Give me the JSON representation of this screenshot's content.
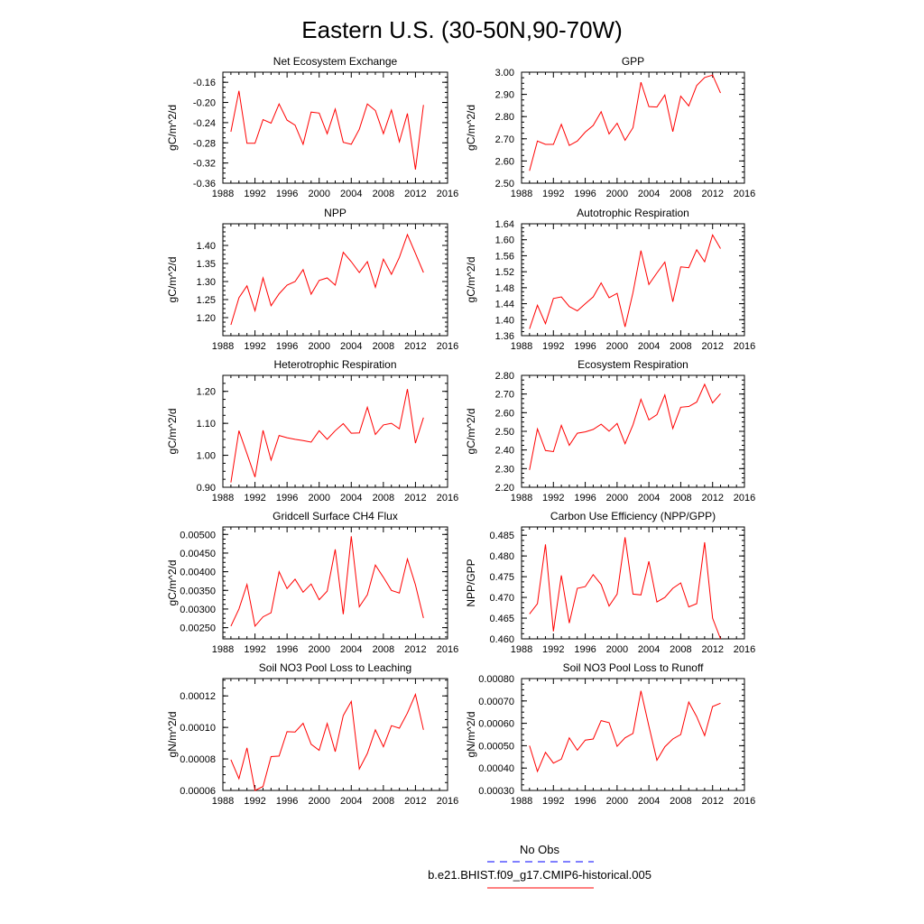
{
  "figure": {
    "title": "Eastern U.S. (30-50N,90-70W)"
  },
  "legend": [
    {
      "label": "No Obs",
      "color": "#0000ff",
      "dashed": true
    },
    {
      "label": "b.e21.BHIST.f09_g17.CMIP6-historical.005",
      "color": "#ff0000",
      "dashed": false
    }
  ],
  "chart_data": [
    {
      "type": "line",
      "title": "Net Ecosystem Exchange",
      "ylabel": "gC/m^2/d",
      "xlim": [
        1988,
        2016
      ],
      "xticks": [
        "1988",
        "1992",
        "1996",
        "2000",
        "2004",
        "2008",
        "2012",
        "2016"
      ],
      "ylim": [
        -0.36,
        -0.14
      ],
      "yticks": [
        "-0.16",
        "-0.20",
        "-0.24",
        "-0.28",
        "-0.32",
        "-0.36"
      ],
      "series": [
        {
          "color": "#ff0000",
          "x": [
            1989,
            1990,
            1991,
            1992,
            1993,
            1994,
            1995,
            1996,
            1997,
            1998,
            1999,
            2000,
            2001,
            2002,
            2003,
            2004,
            2005,
            2006,
            2007,
            2008,
            2009,
            2010,
            2011,
            2012,
            2013
          ],
          "y": [
            -0.258,
            -0.177,
            -0.281,
            -0.281,
            -0.234,
            -0.241,
            -0.203,
            -0.235,
            -0.245,
            -0.283,
            -0.219,
            -0.221,
            -0.262,
            -0.213,
            -0.279,
            -0.283,
            -0.253,
            -0.203,
            -0.216,
            -0.262,
            -0.215,
            -0.278,
            -0.222,
            -0.333,
            -0.205
          ]
        }
      ]
    },
    {
      "type": "line",
      "title": "GPP",
      "ylabel": "gC/m^2/d",
      "xlim": [
        1988,
        2016
      ],
      "xticks": [
        "1988",
        "1992",
        "1996",
        "2000",
        "2004",
        "2008",
        "2012",
        "2016"
      ],
      "ylim": [
        2.5,
        3.0
      ],
      "yticks": [
        "3.00",
        "2.90",
        "2.80",
        "2.70",
        "2.60",
        "2.50"
      ],
      "series": [
        {
          "color": "#ff0000",
          "x": [
            1989,
            1990,
            1991,
            1992,
            1993,
            1994,
            1995,
            1996,
            1997,
            1998,
            1999,
            2000,
            2001,
            2002,
            2003,
            2004,
            2005,
            2006,
            2007,
            2008,
            2009,
            2010,
            2011,
            2012,
            2013
          ],
          "y": [
            2.556,
            2.69,
            2.675,
            2.675,
            2.765,
            2.67,
            2.69,
            2.73,
            2.76,
            2.822,
            2.722,
            2.77,
            2.693,
            2.75,
            2.955,
            2.845,
            2.843,
            2.897,
            2.732,
            2.892,
            2.848,
            2.94,
            2.976,
            2.987,
            2.906
          ]
        }
      ]
    },
    {
      "type": "line",
      "title": "NPP",
      "ylabel": "gC/m^2/d",
      "xlim": [
        1988,
        2016
      ],
      "xticks": [
        "1988",
        "1992",
        "1996",
        "2000",
        "2004",
        "2008",
        "2012",
        "2016"
      ],
      "ylim": [
        1.15,
        1.46
      ],
      "yticks": [
        "1.40",
        "1.35",
        "1.30",
        "1.25",
        "1.20"
      ],
      "series": [
        {
          "color": "#ff0000",
          "x": [
            1989,
            1990,
            1991,
            1992,
            1993,
            1994,
            1995,
            1996,
            1997,
            1998,
            1999,
            2000,
            2001,
            2002,
            2003,
            2004,
            2005,
            2006,
            2007,
            2008,
            2009,
            2010,
            2011,
            2012,
            2013
          ],
          "y": [
            1.18,
            1.255,
            1.288,
            1.219,
            1.31,
            1.233,
            1.266,
            1.29,
            1.3,
            1.333,
            1.265,
            1.303,
            1.31,
            1.29,
            1.381,
            1.355,
            1.325,
            1.355,
            1.284,
            1.362,
            1.32,
            1.367,
            1.43,
            1.378,
            1.325
          ]
        }
      ]
    },
    {
      "type": "line",
      "title": "Autotrophic Respiration",
      "ylabel": "gC/m^2/d",
      "xlim": [
        1988,
        2016
      ],
      "xticks": [
        "1988",
        "1992",
        "1996",
        "2000",
        "2004",
        "2008",
        "2012",
        "2016"
      ],
      "ylim": [
        1.36,
        1.64
      ],
      "yticks": [
        "1.64",
        "1.60",
        "1.56",
        "1.52",
        "1.48",
        "1.44",
        "1.40",
        "1.36"
      ],
      "series": [
        {
          "color": "#ff0000",
          "x": [
            1989,
            1990,
            1991,
            1992,
            1993,
            1994,
            1995,
            1996,
            1997,
            1998,
            1999,
            2000,
            2001,
            2002,
            2003,
            2004,
            2005,
            2006,
            2007,
            2008,
            2009,
            2010,
            2011,
            2012,
            2013
          ],
          "y": [
            1.377,
            1.436,
            1.39,
            1.453,
            1.457,
            1.433,
            1.422,
            1.44,
            1.457,
            1.492,
            1.455,
            1.466,
            1.382,
            1.468,
            1.573,
            1.488,
            1.517,
            1.544,
            1.445,
            1.532,
            1.53,
            1.575,
            1.545,
            1.612,
            1.578
          ]
        }
      ]
    },
    {
      "type": "line",
      "title": "Heterotrophic Respiration",
      "ylabel": "gC/m^2/d",
      "xlim": [
        1988,
        2016
      ],
      "xticks": [
        "1988",
        "1992",
        "1996",
        "2000",
        "2004",
        "2008",
        "2012",
        "2016"
      ],
      "ylim": [
        0.9,
        1.25
      ],
      "yticks": [
        "1.20",
        "1.10",
        "1.00",
        "0.90"
      ],
      "series": [
        {
          "color": "#ff0000",
          "x": [
            1989,
            1990,
            1991,
            1992,
            1993,
            1994,
            1995,
            1996,
            1997,
            1998,
            1999,
            2000,
            2001,
            2002,
            2003,
            2004,
            2005,
            2006,
            2007,
            2008,
            2009,
            2010,
            2011,
            2012,
            2013
          ],
          "y": [
            0.915,
            1.077,
            1.005,
            0.932,
            1.078,
            0.985,
            1.062,
            1.055,
            1.05,
            1.046,
            1.041,
            1.077,
            1.05,
            1.077,
            1.099,
            1.069,
            1.07,
            1.15,
            1.065,
            1.095,
            1.1,
            1.083,
            1.207,
            1.038,
            1.118
          ]
        }
      ]
    },
    {
      "type": "line",
      "title": "Ecosystem Respiration",
      "ylabel": "gC/m^2/d",
      "xlim": [
        1988,
        2016
      ],
      "xticks": [
        "1988",
        "1992",
        "1996",
        "2000",
        "2004",
        "2008",
        "2012",
        "2016"
      ],
      "ylim": [
        2.2,
        2.8
      ],
      "yticks": [
        "2.80",
        "2.70",
        "2.60",
        "2.50",
        "2.40",
        "2.30",
        "2.20"
      ],
      "series": [
        {
          "color": "#ff0000",
          "x": [
            1989,
            1990,
            1991,
            1992,
            1993,
            1994,
            1995,
            1996,
            1997,
            1998,
            1999,
            2000,
            2001,
            2002,
            2003,
            2004,
            2005,
            2006,
            2007,
            2008,
            2009,
            2010,
            2011,
            2012,
            2013
          ],
          "y": [
            2.293,
            2.513,
            2.397,
            2.391,
            2.532,
            2.425,
            2.49,
            2.497,
            2.51,
            2.538,
            2.501,
            2.542,
            2.433,
            2.535,
            2.672,
            2.561,
            2.589,
            2.695,
            2.515,
            2.629,
            2.633,
            2.657,
            2.752,
            2.652,
            2.702
          ]
        }
      ]
    },
    {
      "type": "line",
      "title": "Gridcell Surface CH4 Flux",
      "ylabel": "gC/m^2/d",
      "xlim": [
        1988,
        2016
      ],
      "xticks": [
        "1988",
        "1992",
        "1996",
        "2000",
        "2004",
        "2008",
        "2012",
        "2016"
      ],
      "ylim": [
        0.0022,
        0.0052
      ],
      "yticks": [
        "0.00500",
        "0.00450",
        "0.00400",
        "0.00350",
        "0.00300",
        "0.00250"
      ],
      "series": [
        {
          "color": "#ff0000",
          "x": [
            1989,
            1990,
            1991,
            1992,
            1993,
            1994,
            1995,
            1996,
            1997,
            1998,
            1999,
            2000,
            2001,
            2002,
            2003,
            2004,
            2005,
            2006,
            2007,
            2008,
            2009,
            2010,
            2011,
            2012,
            2013
          ],
          "y": [
            0.00254,
            0.003,
            0.00366,
            0.00254,
            0.00279,
            0.0029,
            0.004,
            0.00355,
            0.0038,
            0.00345,
            0.00367,
            0.00325,
            0.00348,
            0.0046,
            0.00286,
            0.00495,
            0.00306,
            0.00338,
            0.00418,
            0.00385,
            0.0035,
            0.00343,
            0.00434,
            0.00365,
            0.00276
          ]
        }
      ]
    },
    {
      "type": "line",
      "title": "Carbon Use Efficiency (NPP/GPP)",
      "ylabel": "NPP/GPP",
      "xlim": [
        1988,
        2016
      ],
      "xticks": [
        "1988",
        "1992",
        "1996",
        "2000",
        "2004",
        "2008",
        "2012",
        "2016"
      ],
      "ylim": [
        0.46,
        0.487
      ],
      "yticks": [
        "0.485",
        "0.480",
        "0.475",
        "0.470",
        "0.465",
        "0.460"
      ],
      "series": [
        {
          "color": "#ff0000",
          "x": [
            1989,
            1990,
            1991,
            1992,
            1993,
            1994,
            1995,
            1996,
            1997,
            1998,
            1999,
            2000,
            2001,
            2002,
            2003,
            2004,
            2005,
            2006,
            2007,
            2008,
            2009,
            2010,
            2011,
            2012,
            2013
          ],
          "y": [
            0.466,
            0.4685,
            0.4828,
            0.4618,
            0.4753,
            0.4638,
            0.4722,
            0.4726,
            0.4755,
            0.4731,
            0.4679,
            0.4708,
            0.4845,
            0.4708,
            0.4706,
            0.4787,
            0.4689,
            0.47,
            0.4722,
            0.4735,
            0.4677,
            0.4685,
            0.4833,
            0.465,
            0.46
          ]
        }
      ]
    },
    {
      "type": "line",
      "title": "Soil NO3 Pool Loss to Leaching",
      "ylabel": "gN/m^2/d",
      "xlim": [
        1988,
        2016
      ],
      "xticks": [
        "1988",
        "1992",
        "1996",
        "2000",
        "2004",
        "2008",
        "2012",
        "2016"
      ],
      "ylim": [
        6e-05,
        0.000131
      ],
      "yticks": [
        "0.00012",
        "0.00010",
        "0.00008",
        "0.00006"
      ],
      "series": [
        {
          "color": "#ff0000",
          "x": [
            1989,
            1990,
            1991,
            1992,
            1993,
            1994,
            1995,
            1996,
            1997,
            1998,
            1999,
            2000,
            2001,
            2002,
            2003,
            2004,
            2005,
            2006,
            2007,
            2008,
            2009,
            2010,
            2011,
            2012,
            2013
          ],
          "y": [
            7.95e-05,
            6.75e-05,
            8.7e-05,
            6e-05,
            6.25e-05,
            8.15e-05,
            8.18e-05,
            9.73e-05,
            9.71e-05,
            0.0001026,
            8.93e-05,
            8.55e-05,
            0.0001025,
            8.46e-05,
            0.0001075,
            0.0001165,
            7.36e-05,
            8.35e-05,
            9.85e-05,
            8.77e-05,
            0.0001011,
            9.95e-05,
            0.0001091,
            0.000121,
            9.85e-05
          ]
        }
      ]
    },
    {
      "type": "line",
      "title": "Soil NO3 Pool Loss to Runoff",
      "ylabel": "gN/m^2/d",
      "xlim": [
        1988,
        2016
      ],
      "xticks": [
        "1988",
        "1992",
        "1996",
        "2000",
        "2004",
        "2008",
        "2012",
        "2016"
      ],
      "ylim": [
        0.0003,
        0.0008
      ],
      "yticks": [
        "0.00080",
        "0.00070",
        "0.00060",
        "0.00050",
        "0.00040",
        "0.00030"
      ],
      "series": [
        {
          "color": "#ff0000",
          "x": [
            1989,
            1990,
            1991,
            1992,
            1993,
            1994,
            1995,
            1996,
            1997,
            1998,
            1999,
            2000,
            2001,
            2002,
            2003,
            2004,
            2005,
            2006,
            2007,
            2008,
            2009,
            2010,
            2011,
            2012,
            2013
          ],
          "y": [
            0.0005,
            0.000385,
            0.00047,
            0.000422,
            0.00044,
            0.000535,
            0.00048,
            0.000525,
            0.00053,
            0.000612,
            0.000603,
            0.000497,
            0.000535,
            0.000555,
            0.000745,
            0.000588,
            0.000435,
            0.000495,
            0.00053,
            0.00055,
            0.000695,
            0.00063,
            0.000545,
            0.000675,
            0.00069
          ]
        }
      ]
    }
  ]
}
